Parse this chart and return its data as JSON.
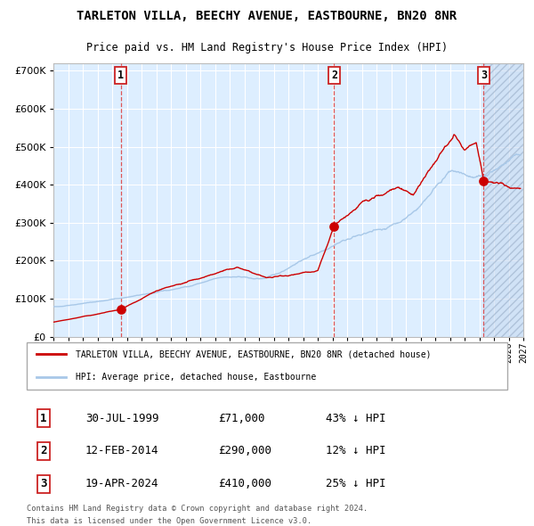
{
  "title": "TARLETON VILLA, BEECHY AVENUE, EASTBOURNE, BN20 8NR",
  "subtitle": "Price paid vs. HM Land Registry's House Price Index (HPI)",
  "xmin": 1995.0,
  "xmax": 2027.0,
  "ymin": 0,
  "ymax": 720000,
  "yticks": [
    0,
    100000,
    200000,
    300000,
    400000,
    500000,
    600000,
    700000
  ],
  "ytick_labels": [
    "£0",
    "£100K",
    "£200K",
    "£300K",
    "£400K",
    "£500K",
    "£600K",
    "£700K"
  ],
  "sale_dates": [
    1999.58,
    2014.12,
    2024.3
  ],
  "sale_prices": [
    71000,
    290000,
    410000
  ],
  "sale_labels": [
    "1",
    "2",
    "3"
  ],
  "legend_entries": [
    "TARLETON VILLA, BEECHY AVENUE, EASTBOURNE, BN20 8NR (detached house)",
    "HPI: Average price, detached house, Eastbourne"
  ],
  "table_rows": [
    [
      "1",
      "30-JUL-1999",
      "£71,000",
      "43% ↓ HPI"
    ],
    [
      "2",
      "12-FEB-2014",
      "£290,000",
      "12% ↓ HPI"
    ],
    [
      "3",
      "19-APR-2024",
      "£410,000",
      "25% ↓ HPI"
    ]
  ],
  "footnote1": "Contains HM Land Registry data © Crown copyright and database right 2024.",
  "footnote2": "This data is licensed under the Open Government Licence v3.0.",
  "hpi_color": "#a8c8e8",
  "price_color": "#cc0000",
  "bg_color": "#ddeeff",
  "grid_color": "#ffffff"
}
